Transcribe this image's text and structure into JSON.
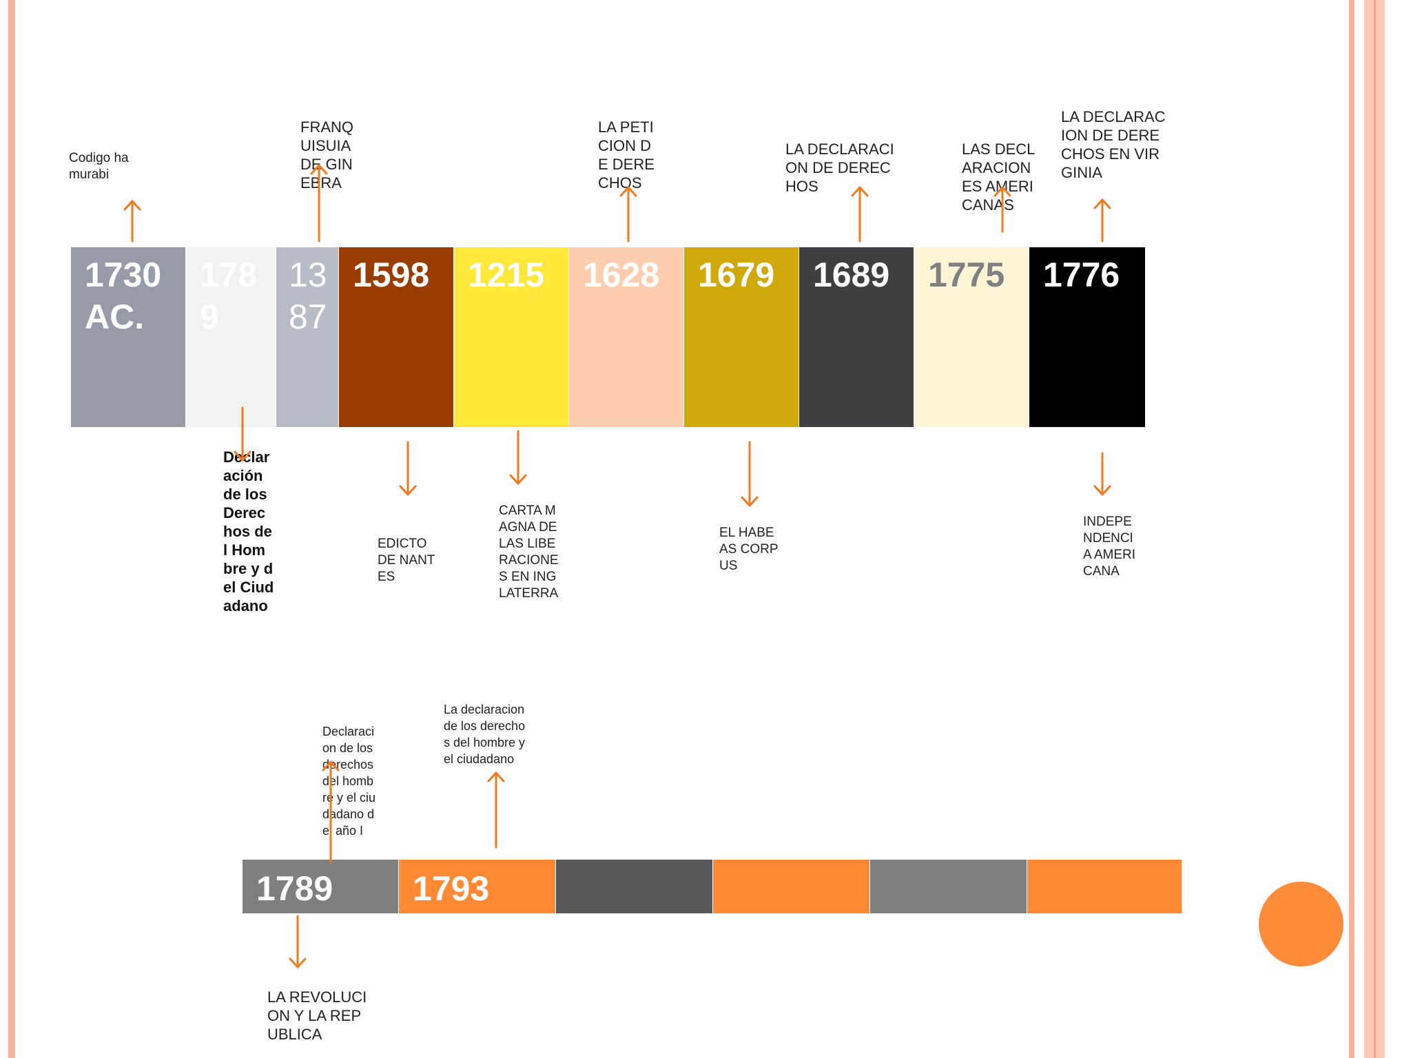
{
  "colors": {
    "accent": "#f07a22",
    "border_salmon": "#f9b49e",
    "circle": "#ff8c3a"
  },
  "timeline1": [
    {
      "year": "1730 AC.",
      "color": "#989ba7",
      "text_color": "#ffffff"
    },
    {
      "year": "1789",
      "color": "#f1f2f2",
      "text_color": "#ffffff"
    },
    {
      "year": "1387",
      "color": "#b8bcc7",
      "text_color": "#ffffff"
    },
    {
      "year": "1598",
      "color": "#993c00",
      "text_color": "#ffffff"
    },
    {
      "year": "1215",
      "color": "#ffe83a",
      "text_color": "#ffffff"
    },
    {
      "year": "1628",
      "color": "#fdcdb0",
      "text_color": "#ffffff"
    },
    {
      "year": "1679",
      "color": "#cfa80a",
      "text_color": "#ffffff"
    },
    {
      "year": "1689",
      "color": "#3f3f41",
      "text_color": "#ffffff"
    },
    {
      "year": "1775",
      "color": "#fdf4d6",
      "text_color": "#808080"
    },
    {
      "year": "1776",
      "color": "#000000",
      "text_color": "#ffffff"
    }
  ],
  "labels1_above": {
    "codigo": "Codigo hamurabi",
    "franquisia": "FRANQUISUIA DE GINEBRA",
    "peticion": "LA PETICION DE DERECHOS",
    "declaracion_derechos": "LA DECLARACION DE DERECHOS",
    "declaraciones_americanas": "LAS DECLARACIONES AMERICANAS",
    "virginia": "LA DECLARACION DE DERECHOS EN VIRGINIA"
  },
  "labels1_below": {
    "declaracion_hombre": "Declaración de los Derechos del Hombre y del Ciudadano",
    "edicto": "EDICTO DE NANTES",
    "carta_magna": "CARTA MAGNA DE LAS LIBERACIONES EN INGLATERRA",
    "habeas": "EL HABEAS CORPUS",
    "independencia": "INDEPENDENCIA AMERICANA"
  },
  "timeline2": [
    {
      "year": "1789",
      "color": "#7f7f7f",
      "text_color": "#ffffff"
    },
    {
      "year": "1793",
      "color": "#ff8a33",
      "text_color": "#ffffff"
    },
    {
      "year": "",
      "color": "#58575a",
      "text_color": "#ffffff"
    },
    {
      "year": "",
      "color": "#ff8a33",
      "text_color": "#ffffff"
    },
    {
      "year": "",
      "color": "#7f7e80",
      "text_color": "#ffffff"
    },
    {
      "year": "",
      "color": "#ff8a33",
      "text_color": "#ffffff"
    }
  ],
  "labels2": {
    "declaracion_1": "Declaracion de los derechos del hombre y el ciudadano del año I",
    "declaracion_2": "La declaracion de los derechos del hombre y el ciudadano",
    "revolucion": "LA REVOLUCION Y LA REPUBLICA"
  }
}
